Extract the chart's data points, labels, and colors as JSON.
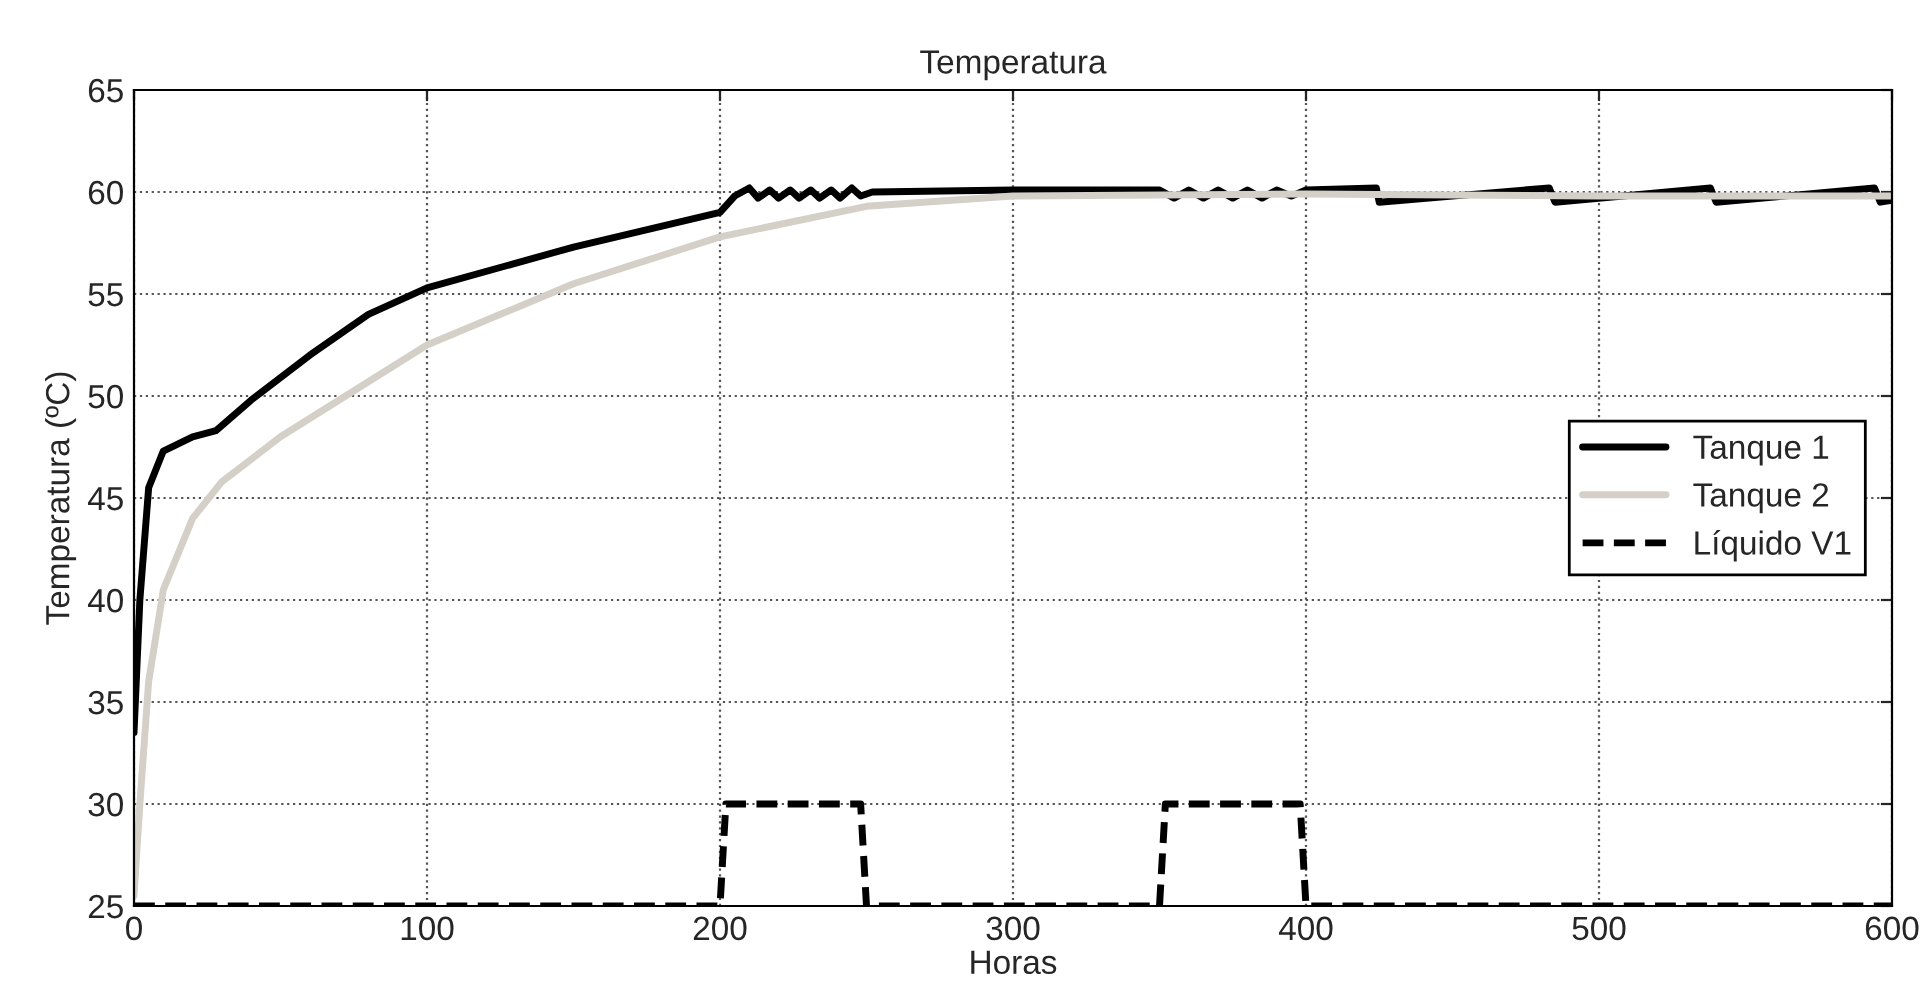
{
  "chart_data": {
    "type": "line",
    "title": "Temperatura",
    "xlabel": "Horas",
    "ylabel": "Temperatura (ºC)",
    "xlim": [
      0,
      600
    ],
    "ylim": [
      25,
      65
    ],
    "xticks": [
      0,
      100,
      200,
      300,
      400,
      500,
      600
    ],
    "yticks": [
      25,
      30,
      35,
      40,
      45,
      50,
      55,
      60,
      65
    ],
    "grid": true,
    "legend": "center right",
    "series": [
      {
        "name": "Tanque 1",
        "color": "#000000",
        "line_style": "solid",
        "x": [
          0,
          2,
          5,
          10,
          20,
          28,
          40,
          60,
          80,
          100,
          150,
          200,
          205,
          210,
          213,
          217,
          220,
          224,
          227,
          231,
          234,
          238,
          241,
          245,
          248,
          252,
          300,
          350,
          355,
          360,
          365,
          370,
          375,
          380,
          385,
          390,
          395,
          400,
          424,
          425,
          483,
          485,
          538,
          540,
          594,
          596,
          600
        ],
        "values": [
          33.5,
          40,
          45.5,
          47.3,
          48,
          48.3,
          49.8,
          52,
          54,
          55.3,
          57.3,
          59,
          59.8,
          60.2,
          59.7,
          60.1,
          59.7,
          60.1,
          59.7,
          60.1,
          59.7,
          60.1,
          59.7,
          60.2,
          59.8,
          60,
          60.1,
          60.1,
          59.7,
          60.1,
          59.7,
          60.1,
          59.7,
          60.1,
          59.7,
          60.1,
          59.8,
          60.1,
          60.2,
          59.5,
          60.2,
          59.5,
          60.2,
          59.5,
          60.2,
          59.5,
          59.6
        ]
      },
      {
        "name": "Tanque 2",
        "color": "#d4d0c8",
        "line_style": "solid",
        "x": [
          0,
          2,
          5,
          10,
          20,
          30,
          50,
          100,
          150,
          200,
          250,
          300,
          400,
          500,
          600
        ],
        "values": [
          25.5,
          30,
          36,
          40.5,
          44,
          45.8,
          48,
          52.5,
          55.5,
          57.8,
          59.3,
          59.8,
          59.9,
          59.8,
          59.8
        ]
      },
      {
        "name": "Líquido V1",
        "color": "#000000",
        "line_style": "dashed",
        "x": [
          0,
          200,
          202,
          248,
          250,
          350,
          352,
          398,
          400,
          600
        ],
        "values": [
          25,
          25,
          30,
          30,
          25,
          25,
          30,
          30,
          25,
          25
        ]
      }
    ]
  }
}
